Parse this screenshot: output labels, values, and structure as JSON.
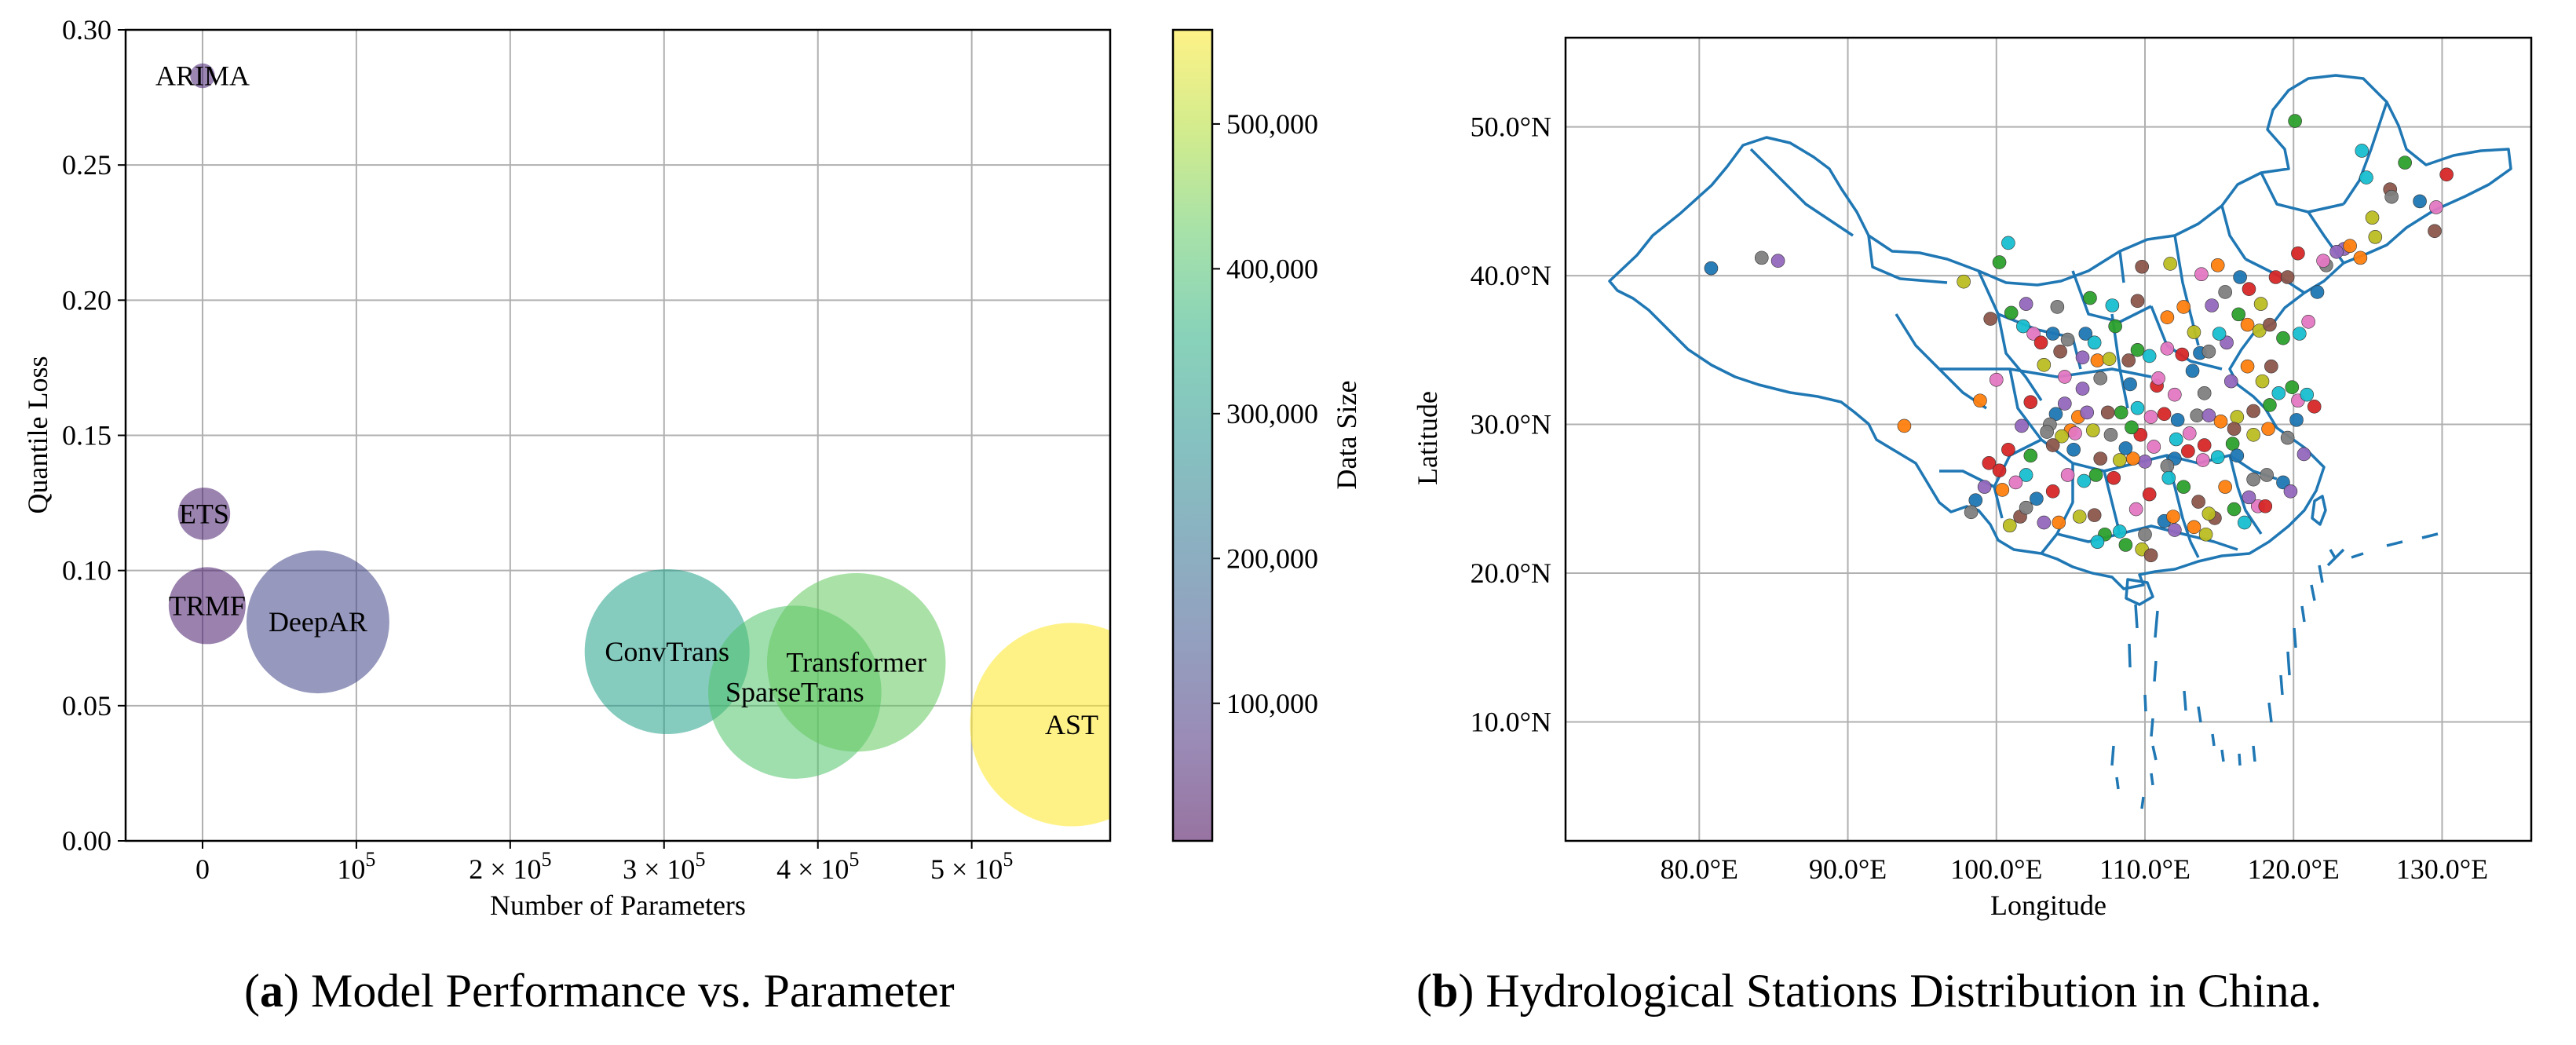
{
  "captions": {
    "a": {
      "letter": "a",
      "text": "Model Performance vs. Parameter"
    },
    "b": {
      "letter": "b",
      "text": "Hydrological Stations Distribution in China."
    }
  },
  "chart_data": [
    {
      "type": "scatter",
      "subtype": "bubble",
      "title": "",
      "xlabel": "Number of Parameters",
      "ylabel": "Quantile Loss",
      "xlim": [
        -50000,
        590000
      ],
      "ylim": [
        0,
        0.3
      ],
      "x_ticks": [
        {
          "value": 0,
          "label": "0"
        },
        {
          "value": 100000,
          "label": "10",
          "sup": "5"
        },
        {
          "value": 200000,
          "label": "2 × 10",
          "sup": "5"
        },
        {
          "value": 300000,
          "label": "3 × 10",
          "sup": "5"
        },
        {
          "value": 400000,
          "label": "4 × 10",
          "sup": "5"
        },
        {
          "value": 500000,
          "label": "5 × 10",
          "sup": "5"
        }
      ],
      "y_ticks": [
        "0.00",
        "0.05",
        "0.10",
        "0.15",
        "0.20",
        "0.25",
        "0.30"
      ],
      "grid": true,
      "colorbar": {
        "label": "Data Size",
        "range": [
          5000,
          565000
        ],
        "ticks": [
          "100,000",
          "200,000",
          "300,000",
          "400,000",
          "500,000"
        ],
        "colormap": "viridis",
        "alpha": 0.55
      },
      "points": [
        {
          "label": "ARIMA",
          "params": 0,
          "loss": 0.283,
          "size_rel": 0.09,
          "data_size": 60000
        },
        {
          "label": "ETS",
          "params": 1000,
          "loss": 0.121,
          "size_rel": 0.19,
          "data_size": 50000
        },
        {
          "label": "TRMF",
          "params": 3000,
          "loss": 0.087,
          "size_rel": 0.28,
          "data_size": 45000
        },
        {
          "label": "DeepAR",
          "params": 75000,
          "loss": 0.081,
          "size_rel": 0.52,
          "data_size": 120000
        },
        {
          "label": "ConvTrans",
          "params": 302000,
          "loss": 0.07,
          "size_rel": 0.6,
          "data_size": 320000
        },
        {
          "label": "SparseTrans",
          "params": 385000,
          "loss": 0.055,
          "size_rel": 0.63,
          "data_size": 410000
        },
        {
          "label": "Transformer",
          "params": 425000,
          "loss": 0.066,
          "size_rel": 0.65,
          "data_size": 430000
        },
        {
          "label": "AST",
          "params": 565000,
          "loss": 0.043,
          "size_rel": 0.74,
          "data_size": 565000
        }
      ]
    },
    {
      "type": "scatter",
      "subtype": "map",
      "title": "",
      "xlabel": "Longitude",
      "ylabel": "Latitude",
      "xlim": [
        71,
        136
      ],
      "ylim": [
        2,
        56
      ],
      "x_ticks": [
        "80.0°E",
        "90.0°E",
        "100.0°E",
        "110.0°E",
        "120.0°E",
        "130.0°E"
      ],
      "y_ticks": [
        "10.0°N",
        "20.0°N",
        "30.0°N",
        "40.0°N",
        "50.0°N"
      ],
      "grid": true,
      "marker_colors": [
        "#1f77b4",
        "#ff7f0e",
        "#2ca02c",
        "#d62728",
        "#9467bd",
        "#8c564b",
        "#e377c2",
        "#7f7f7f",
        "#bcbd22",
        "#17becf"
      ],
      "outline_color": "#1f77b4",
      "stations": [
        [
          80.8,
          40.5
        ],
        [
          84.2,
          41.2
        ],
        [
          85.3,
          41.0
        ],
        [
          93.8,
          29.9
        ],
        [
          97.8,
          39.6
        ],
        [
          99.6,
          37.1
        ],
        [
          100.2,
          40.9
        ],
        [
          100.8,
          42.2
        ],
        [
          100.0,
          33.0
        ],
        [
          99.5,
          27.4
        ],
        [
          98.6,
          24.9
        ],
        [
          98.3,
          24.1
        ],
        [
          99.2,
          25.8
        ],
        [
          100.4,
          25.6
        ],
        [
          100.9,
          23.2
        ],
        [
          101.6,
          23.8
        ],
        [
          101.0,
          37.5
        ],
        [
          101.8,
          36.6
        ],
        [
          102.5,
          36.1
        ],
        [
          103.0,
          35.5
        ],
        [
          103.8,
          36.1
        ],
        [
          104.8,
          35.7
        ],
        [
          105.8,
          34.5
        ],
        [
          106.8,
          34.3
        ],
        [
          107.6,
          34.4
        ],
        [
          108.9,
          34.3
        ],
        [
          109.5,
          35.0
        ],
        [
          110.3,
          34.6
        ],
        [
          111.5,
          35.1
        ],
        [
          112.5,
          34.7
        ],
        [
          113.7,
          34.8
        ],
        [
          114.3,
          34.9
        ],
        [
          115.5,
          35.5
        ],
        [
          116.9,
          36.7
        ],
        [
          117.7,
          36.3
        ],
        [
          118.4,
          36.7
        ],
        [
          119.3,
          35.8
        ],
        [
          120.4,
          36.1
        ],
        [
          121.0,
          36.9
        ],
        [
          117.0,
          39.1
        ],
        [
          116.4,
          39.9
        ],
        [
          115.4,
          38.9
        ],
        [
          114.5,
          38.0
        ],
        [
          112.6,
          37.9
        ],
        [
          111.7,
          40.8
        ],
        [
          109.8,
          40.6
        ],
        [
          106.3,
          38.5
        ],
        [
          107.8,
          38.0
        ],
        [
          113.8,
          40.1
        ],
        [
          118.8,
          39.9
        ],
        [
          121.6,
          38.9
        ],
        [
          122.2,
          40.7
        ],
        [
          123.4,
          41.8
        ],
        [
          124.5,
          41.2
        ],
        [
          125.3,
          43.9
        ],
        [
          126.5,
          45.8
        ],
        [
          127.5,
          47.6
        ],
        [
          124.9,
          46.6
        ],
        [
          129.6,
          44.6
        ],
        [
          130.3,
          46.8
        ],
        [
          128.5,
          45.0
        ],
        [
          126.6,
          45.3
        ],
        [
          122.9,
          41.6
        ],
        [
          123.8,
          42.0
        ],
        [
          125.5,
          42.6
        ],
        [
          129.5,
          43.0
        ],
        [
          120.1,
          50.4
        ],
        [
          124.6,
          48.4
        ],
        [
          122.0,
          41.0
        ],
        [
          120.3,
          41.5
        ],
        [
          104.0,
          30.7
        ],
        [
          103.6,
          30.0
        ],
        [
          104.6,
          31.4
        ],
        [
          105.5,
          30.5
        ],
        [
          106.5,
          29.6
        ],
        [
          107.5,
          30.8
        ],
        [
          108.4,
          30.8
        ],
        [
          109.5,
          31.1
        ],
        [
          110.4,
          30.5
        ],
        [
          111.3,
          30.7
        ],
        [
          112.2,
          30.3
        ],
        [
          113.5,
          30.6
        ],
        [
          114.3,
          30.6
        ],
        [
          115.1,
          30.2
        ],
        [
          116.2,
          30.5
        ],
        [
          117.3,
          30.9
        ],
        [
          118.4,
          31.3
        ],
        [
          119.0,
          32.1
        ],
        [
          120.3,
          31.6
        ],
        [
          121.4,
          31.2
        ],
        [
          120.2,
          30.3
        ],
        [
          119.6,
          29.1
        ],
        [
          120.7,
          28.0
        ],
        [
          118.3,
          29.7
        ],
        [
          117.3,
          29.3
        ],
        [
          116.0,
          29.7
        ],
        [
          115.9,
          28.7
        ],
        [
          114.9,
          27.8
        ],
        [
          113.9,
          27.6
        ],
        [
          112.9,
          28.2
        ],
        [
          112.0,
          27.7
        ],
        [
          111.5,
          27.2
        ],
        [
          110.0,
          27.5
        ],
        [
          109.2,
          27.7
        ],
        [
          108.3,
          27.6
        ],
        [
          107.0,
          27.7
        ],
        [
          106.7,
          26.6
        ],
        [
          105.9,
          26.2
        ],
        [
          104.8,
          26.6
        ],
        [
          103.8,
          25.5
        ],
        [
          102.7,
          25.0
        ],
        [
          102.0,
          24.4
        ],
        [
          103.2,
          23.4
        ],
        [
          104.2,
          23.4
        ],
        [
          105.6,
          23.8
        ],
        [
          106.6,
          23.9
        ],
        [
          107.3,
          22.6
        ],
        [
          108.3,
          22.8
        ],
        [
          109.4,
          24.3
        ],
        [
          110.3,
          25.3
        ],
        [
          111.3,
          23.5
        ],
        [
          110.0,
          22.6
        ],
        [
          112.0,
          22.9
        ],
        [
          113.3,
          23.1
        ],
        [
          114.1,
          22.6
        ],
        [
          114.7,
          23.7
        ],
        [
          116.0,
          24.3
        ],
        [
          116.7,
          23.4
        ],
        [
          117.6,
          24.5
        ],
        [
          118.1,
          24.5
        ],
        [
          119.3,
          26.1
        ],
        [
          118.2,
          26.6
        ],
        [
          117.0,
          25.1
        ],
        [
          115.4,
          25.8
        ],
        [
          114.3,
          24.0
        ],
        [
          113.6,
          24.8
        ],
        [
          112.6,
          25.8
        ],
        [
          111.6,
          26.4
        ],
        [
          110.6,
          28.5
        ],
        [
          109.7,
          29.3
        ],
        [
          108.7,
          28.4
        ],
        [
          107.7,
          29.3
        ],
        [
          106.1,
          30.8
        ],
        [
          105.0,
          29.6
        ],
        [
          104.4,
          29.2
        ],
        [
          103.8,
          28.6
        ],
        [
          102.3,
          27.9
        ],
        [
          102.0,
          26.6
        ],
        [
          101.3,
          26.1
        ],
        [
          100.2,
          26.9
        ],
        [
          113.2,
          33.6
        ],
        [
          114.0,
          32.1
        ],
        [
          115.8,
          32.9
        ],
        [
          116.9,
          33.9
        ],
        [
          117.9,
          32.9
        ],
        [
          118.5,
          33.9
        ],
        [
          119.9,
          32.5
        ],
        [
          120.9,
          32.0
        ],
        [
          112.0,
          32.0
        ],
        [
          110.8,
          32.6
        ],
        [
          109.0,
          32.7
        ],
        [
          107.0,
          33.1
        ],
        [
          105.8,
          32.4
        ],
        [
          111.9,
          23.8
        ],
        [
          109.8,
          21.6
        ],
        [
          110.4,
          21.2
        ],
        [
          108.7,
          21.9
        ],
        [
          106.8,
          22.1
        ],
        [
          105.3,
          29.4
        ],
        [
          102.3,
          31.5
        ],
        [
          106.0,
          36.1
        ],
        [
          104.1,
          37.9
        ],
        [
          102.0,
          38.1
        ],
        [
          114.9,
          40.7
        ],
        [
          117.8,
          38.1
        ],
        [
          119.6,
          39.9
        ],
        [
          116.3,
          37.4
        ],
        [
          115.0,
          36.1
        ],
        [
          110.9,
          33.1
        ],
        [
          107.9,
          26.4
        ],
        [
          105.2,
          28.3
        ],
        [
          103.4,
          29.5
        ],
        [
          101.7,
          29.9
        ],
        [
          98.9,
          31.6
        ],
        [
          103.2,
          34.0
        ],
        [
          104.3,
          34.9
        ],
        [
          109.1,
          29.8
        ],
        [
          112.1,
          29.0
        ],
        [
          113.0,
          29.4
        ],
        [
          114.0,
          28.6
        ],
        [
          116.2,
          27.9
        ],
        [
          117.3,
          26.3
        ],
        [
          119.8,
          25.5
        ],
        [
          111.5,
          37.2
        ],
        [
          113.3,
          36.2
        ],
        [
          109.5,
          38.3
        ],
        [
          108.0,
          36.6
        ],
        [
          106.6,
          35.5
        ],
        [
          104.6,
          33.2
        ],
        [
          100.8,
          28.3
        ]
      ]
    }
  ]
}
